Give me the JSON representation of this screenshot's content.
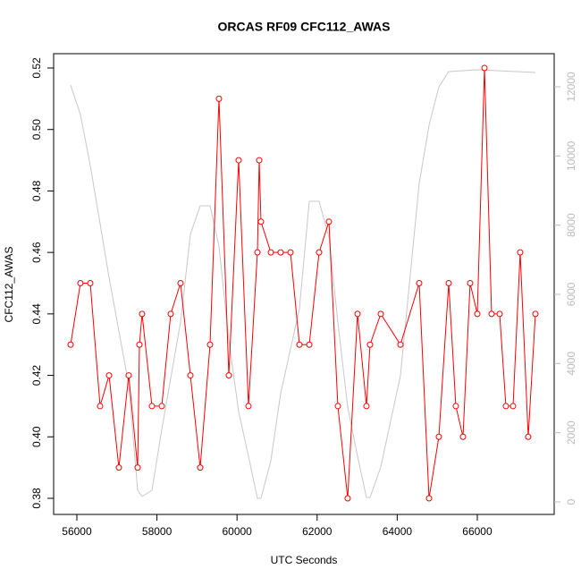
{
  "chart_data": {
    "type": "line",
    "title": "ORCAS RF09 CFC112_AWAS",
    "xlabel": "UTC Seconds",
    "ylabel": "CFC112_AWAS",
    "xlim": [
      55420,
      67920
    ],
    "xticks": [
      56000,
      58000,
      60000,
      62000,
      64000,
      66000
    ],
    "ylim": [
      0.37476,
      0.52466
    ],
    "yticks": [
      0.38,
      {
        "value": 0.4,
        "label": "0.40"
      },
      0.42,
      0.44,
      0.46,
      0.48,
      {
        "value": 0.5,
        "label": "0.50"
      },
      0.52
    ],
    "y2lim": [
      -362,
      12957
    ],
    "y2ticks": [
      0,
      2000,
      4000,
      6000,
      8000,
      10000,
      12000
    ],
    "y2color": "#bbbbbb",
    "series": [
      {
        "color": "#ff0000",
        "markers": true,
        "x": [
          55844,
          56089,
          56335,
          56580,
          56804,
          57049,
          57295,
          57518,
          57563,
          57629,
          57875,
          58121,
          58344,
          58589,
          58835,
          59080,
          59326,
          59549,
          59795,
          60040,
          60286,
          60509,
          60554,
          60598,
          60844,
          61089,
          61335,
          61558,
          61804,
          62049,
          62295,
          62518,
          62763,
          63009,
          63232,
          63321,
          63589,
          64080,
          64549,
          64795,
          65040,
          65286,
          65464,
          65643,
          65821,
          66000,
          66179,
          66357,
          66558,
          66714,
          66893,
          67071,
          67272,
          67451
        ],
        "values": [
          0.43,
          0.45,
          0.45,
          0.41,
          0.42,
          0.39,
          0.42,
          0.39,
          0.43,
          0.44,
          0.41,
          0.41,
          0.44,
          0.45,
          0.42,
          0.39,
          0.43,
          0.51,
          0.42,
          0.49,
          0.41,
          0.46,
          0.49,
          0.47,
          0.46,
          0.46,
          0.46,
          0.43,
          0.43,
          0.46,
          0.47,
          0.41,
          0.38,
          0.44,
          0.41,
          0.43,
          0.44,
          0.43,
          0.45,
          0.38,
          0.4,
          0.45,
          0.41,
          0.4,
          0.45,
          0.44,
          0.52,
          0.44,
          0.44,
          0.41,
          0.41,
          0.46,
          0.4,
          0.44
        ]
      },
      {
        "color": "#c8c8c8",
        "axis": "y2",
        "markers": false,
        "x": [
          55844,
          56089,
          56335,
          56580,
          56804,
          57049,
          57295,
          57518,
          57629,
          57875,
          58121,
          58589,
          58835,
          59080,
          59326,
          59549,
          59795,
          60040,
          60286,
          60509,
          60598,
          60844,
          61089,
          61558,
          61804,
          62049,
          62295,
          62518,
          62763,
          63009,
          63232,
          63321,
          63589,
          64080,
          64549,
          64795,
          65040,
          65286,
          66000,
          67451
        ],
        "values": [
          12050,
          11197,
          9723,
          8042,
          6491,
          4939,
          3387,
          336,
          155,
          336,
          2094,
          5198,
          7732,
          8560,
          8560,
          7396,
          4681,
          2612,
          1319,
          103,
          103,
          1190,
          3129,
          5586,
          8689,
          8689,
          7655,
          5198,
          2741,
          1319,
          129,
          129,
          1009,
          3646,
          9206,
          10887,
          11999,
          12439,
          12490,
          12413
        ]
      }
    ]
  }
}
